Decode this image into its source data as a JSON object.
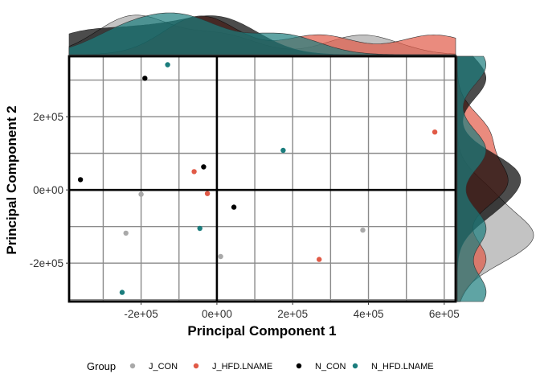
{
  "chart_data": {
    "type": "scatter",
    "title": "",
    "xlabel": "Principal Component 1",
    "ylabel": "Principal Component 2",
    "xlim": [
      -390000,
      630000
    ],
    "ylim": [
      -305000,
      365000
    ],
    "x_ticks": [
      -200000,
      0,
      200000,
      400000,
      600000
    ],
    "x_tick_labels": [
      "-2e+05",
      "0e+00",
      "2e+05",
      "4e+05",
      "6e+05"
    ],
    "y_ticks": [
      -200000,
      0,
      200000
    ],
    "y_tick_labels": [
      "-2e+05",
      "0e+00",
      "2e+05"
    ],
    "grid": true,
    "marginal_density": true,
    "legend": {
      "title": "Group",
      "position": "bottom"
    },
    "series": [
      {
        "name": "J_CON",
        "color": "#A9A9A9",
        "points": [
          [
            -200000,
            -12000
          ],
          [
            -240000,
            -118000
          ],
          [
            10000,
            -182000
          ],
          [
            385000,
            -110000
          ]
        ]
      },
      {
        "name": "J_HFD.LNAME",
        "color": "#E15A47",
        "points": [
          [
            -60000,
            50000
          ],
          [
            -25000,
            -10000
          ],
          [
            270000,
            -190000
          ],
          [
            575000,
            158000
          ]
        ]
      },
      {
        "name": "N_CON",
        "color": "#000000",
        "points": [
          [
            -190000,
            305000
          ],
          [
            -360000,
            28000
          ],
          [
            -35000,
            63000
          ],
          [
            45000,
            -47000
          ]
        ]
      },
      {
        "name": "N_HFD.LNAME",
        "color": "#1B7D7D",
        "points": [
          [
            -130000,
            342000
          ],
          [
            175000,
            108000
          ],
          [
            -45000,
            -105000
          ],
          [
            -250000,
            -280000
          ]
        ]
      }
    ]
  }
}
